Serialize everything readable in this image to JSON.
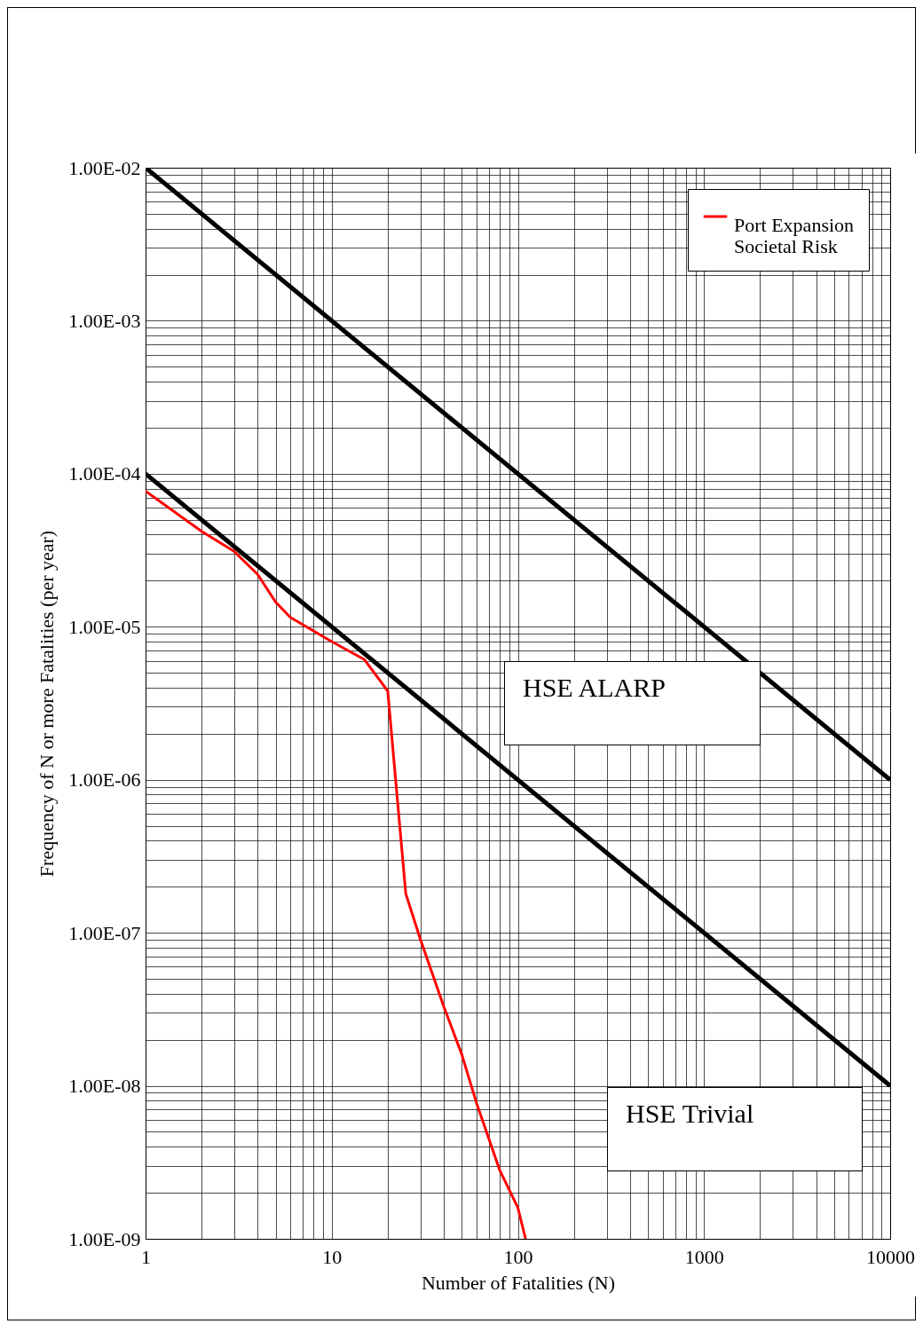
{
  "chart_data": {
    "type": "line",
    "xlabel": "Number of Fatalities (N)",
    "ylabel": "Frequency of N or more Fatalities (per year)",
    "log": "xy",
    "grid": true,
    "legend": "top right",
    "marker": "none",
    "line_style": "solid",
    "xlim": [
      1,
      10000
    ],
    "ylim": [
      1e-09,
      0.01
    ],
    "xticks": [
      1,
      {
        "value": 2,
        "label": null
      },
      {
        "value": 3,
        "label": null
      },
      {
        "value": 4,
        "label": null
      },
      {
        "value": 5,
        "label": null
      },
      {
        "value": 6,
        "label": null
      },
      {
        "value": 7,
        "label": null
      },
      {
        "value": 8,
        "label": null
      },
      {
        "value": 9,
        "label": null
      },
      10,
      {
        "value": 20,
        "label": null
      },
      {
        "value": 30,
        "label": null
      },
      {
        "value": 40,
        "label": null
      },
      {
        "value": 50,
        "label": null
      },
      {
        "value": 60,
        "label": null
      },
      {
        "value": 70,
        "label": null
      },
      {
        "value": 80,
        "label": null
      },
      {
        "value": 90,
        "label": null
      },
      100,
      {
        "value": 200,
        "label": null
      },
      {
        "value": 300,
        "label": null
      },
      {
        "value": 400,
        "label": null
      },
      {
        "value": 500,
        "label": null
      },
      {
        "value": 600,
        "label": null
      },
      {
        "value": 700,
        "label": null
      },
      {
        "value": 800,
        "label": null
      },
      {
        "value": 900,
        "label": null
      },
      1000,
      {
        "value": 2000,
        "label": null
      },
      {
        "value": 3000,
        "label": null
      },
      {
        "value": 4000,
        "label": null
      },
      {
        "value": 5000,
        "label": null
      },
      {
        "value": 6000,
        "label": null
      },
      {
        "value": 7000,
        "label": null
      },
      {
        "value": 8000,
        "label": null
      },
      {
        "value": 9000,
        "label": null
      },
      10000
    ],
    "yticks": [
      {
        "value": 1e-09,
        "label": "1.00E-09"
      },
      {
        "value": 2e-09,
        "label": null
      },
      {
        "value": 3e-09,
        "label": null
      },
      {
        "value": 4e-09,
        "label": null
      },
      {
        "value": 5e-09,
        "label": null
      },
      {
        "value": 6e-09,
        "label": null
      },
      {
        "value": 7e-09,
        "label": null
      },
      {
        "value": 8e-09,
        "label": null
      },
      {
        "value": 9e-09,
        "label": null
      },
      {
        "value": 1e-08,
        "label": "1.00E-08"
      },
      {
        "value": 2e-08,
        "label": null
      },
      {
        "value": 3e-08,
        "label": null
      },
      {
        "value": 4e-08,
        "label": null
      },
      {
        "value": 5e-08,
        "label": null
      },
      {
        "value": 6e-08,
        "label": null
      },
      {
        "value": 7e-08,
        "label": null
      },
      {
        "value": 8e-08,
        "label": null
      },
      {
        "value": 9e-08,
        "label": null
      },
      {
        "value": 1e-07,
        "label": "1.00E-07"
      },
      {
        "value": 2e-07,
        "label": null
      },
      {
        "value": 3e-07,
        "label": null
      },
      {
        "value": 4e-07,
        "label": null
      },
      {
        "value": 5e-07,
        "label": null
      },
      {
        "value": 6e-07,
        "label": null
      },
      {
        "value": 7e-07,
        "label": null
      },
      {
        "value": 8e-07,
        "label": null
      },
      {
        "value": 9e-07,
        "label": null
      },
      {
        "value": 1e-06,
        "label": "1.00E-06"
      },
      {
        "value": 2e-06,
        "label": null
      },
      {
        "value": 3e-06,
        "label": null
      },
      {
        "value": 4e-06,
        "label": null
      },
      {
        "value": 5e-06,
        "label": null
      },
      {
        "value": 6e-06,
        "label": null
      },
      {
        "value": 7e-06,
        "label": null
      },
      {
        "value": 8e-06,
        "label": null
      },
      {
        "value": 9e-06,
        "label": null
      },
      {
        "value": 1e-05,
        "label": "1.00E-05"
      },
      {
        "value": 2e-05,
        "label": null
      },
      {
        "value": 3e-05,
        "label": null
      },
      {
        "value": 4e-05,
        "label": null
      },
      {
        "value": 5e-05,
        "label": null
      },
      {
        "value": 6e-05,
        "label": null
      },
      {
        "value": 7e-05,
        "label": null
      },
      {
        "value": 8e-05,
        "label": null
      },
      {
        "value": 9e-05,
        "label": null
      },
      {
        "value": 0.0001,
        "label": "1.00E-04"
      },
      {
        "value": 0.0002,
        "label": null
      },
      {
        "value": 0.0003,
        "label": null
      },
      {
        "value": 0.0004,
        "label": null
      },
      {
        "value": 0.0005,
        "label": null
      },
      {
        "value": 0.0006,
        "label": null
      },
      {
        "value": 0.0007,
        "label": null
      },
      {
        "value": 0.0008,
        "label": null
      },
      {
        "value": 0.0009,
        "label": null
      },
      {
        "value": 0.001,
        "label": "1.00E-03"
      },
      {
        "value": 0.002,
        "label": null
      },
      {
        "value": 0.003,
        "label": null
      },
      {
        "value": 0.004,
        "label": null
      },
      {
        "value": 0.005,
        "label": null
      },
      {
        "value": 0.006,
        "label": null
      },
      {
        "value": 0.007,
        "label": null
      },
      {
        "value": 0.008,
        "label": null
      },
      {
        "value": 0.009,
        "label": null
      },
      {
        "value": 0.01,
        "label": "1.00E-02"
      }
    ],
    "series": [
      {
        "color": "#000000",
        "x": [
          1,
          10000
        ],
        "values": [
          0.01,
          1e-06
        ]
      },
      {
        "color": "#000000",
        "x": [
          1,
          10000
        ],
        "values": [
          0.0001,
          1e-08
        ]
      },
      {
        "name": "Port Expansion Societal Risk",
        "color": "#ff0000",
        "x": [
          1,
          2,
          3,
          4,
          5,
          6,
          10,
          15,
          20,
          25,
          30,
          40,
          50,
          60,
          80,
          100,
          110
        ],
        "values": [
          7.7e-05,
          4.2e-05,
          3.1e-05,
          2.2e-05,
          1.45e-05,
          1.15e-05,
          8e-06,
          6.1e-06,
          3.8e-06,
          1.8e-07,
          9e-08,
          3.3e-08,
          1.6e-08,
          7.7e-09,
          2.8e-09,
          1.6e-09,
          1e-09
        ]
      }
    ],
    "annotations": [
      "HSE ALARP",
      "HSE Trivial"
    ]
  }
}
